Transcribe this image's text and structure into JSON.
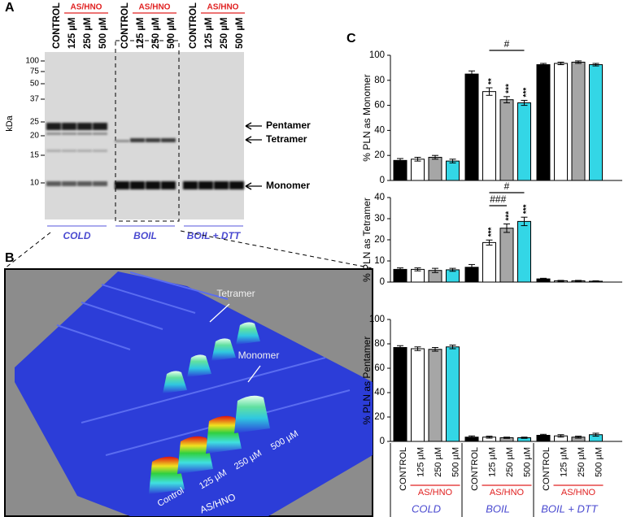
{
  "panel_labels": [
    "A",
    "B",
    "C"
  ],
  "blot": {
    "lanes": [
      "CONTROL",
      "125 µM",
      "250 µM",
      "500 µM",
      "CONTROL",
      "125 µM",
      "250 µM",
      "500 µM",
      "CONTROL",
      "125 µM",
      "250 µM",
      "500 µM"
    ],
    "treatment_labels": [
      "AS/HNO",
      "AS/HNO",
      "AS/HNO"
    ],
    "kda_label": "kDa",
    "markers": [
      100,
      75,
      50,
      37,
      25,
      20,
      15,
      10
    ],
    "bands": [
      "Pentamer",
      "Tetramer",
      "Monomer"
    ],
    "groups": [
      "COLD",
      "BOIL",
      "BOIL + DTT"
    ]
  },
  "surface": {
    "peak_labels": [
      "Tetramer",
      "Monomer"
    ],
    "lanes": [
      "Control",
      "125 µM",
      "250 µM",
      "500 µM"
    ],
    "treatment": "AS/HNO"
  },
  "chart_data": [
    {
      "type": "bar",
      "ylabel": "% PLN as Monomer",
      "ylim": [
        0,
        100
      ],
      "yticks": [
        0,
        20,
        40,
        60,
        80,
        100
      ],
      "colors": [
        "#000000",
        "#ffffff",
        "#a6a6a6",
        "#33d6e6",
        "#000000",
        "#ffffff",
        "#a6a6a6",
        "#33d6e6",
        "#000000",
        "#ffffff",
        "#a6a6a6",
        "#33d6e6"
      ],
      "values": [
        16,
        17,
        18.5,
        15.5,
        85,
        71,
        64.5,
        62,
        92.5,
        93.5,
        94.5,
        92.5
      ],
      "errors": [
        1.5,
        1.5,
        1.5,
        1.5,
        2.5,
        3,
        2.5,
        2,
        1,
        1,
        1,
        1
      ],
      "significance": [
        null,
        null,
        null,
        null,
        null,
        "**",
        "***",
        "***",
        null,
        null,
        null,
        null
      ],
      "brackets": [
        {
          "label": "#",
          "from": 5,
          "to": 7
        }
      ]
    },
    {
      "type": "bar",
      "ylabel": "% PLN as Tetramer",
      "ylim": [
        0,
        40
      ],
      "yticks": [
        0,
        10,
        20,
        30,
        40
      ],
      "colors": [
        "#000000",
        "#ffffff",
        "#a6a6a6",
        "#33d6e6",
        "#000000",
        "#ffffff",
        "#a6a6a6",
        "#33d6e6",
        "#000000",
        "#ffffff",
        "#a6a6a6",
        "#33d6e6"
      ],
      "values": [
        6,
        6,
        5.5,
        5.8,
        7,
        18.7,
        25.5,
        28.7,
        1.5,
        0.6,
        0.6,
        0.4
      ],
      "errors": [
        0.7,
        0.7,
        1,
        0.7,
        1.3,
        1.2,
        2,
        2,
        0.3,
        0.2,
        0.2,
        0.2
      ],
      "significance": [
        null,
        null,
        null,
        null,
        null,
        "***",
        "***",
        "***",
        null,
        null,
        null,
        null
      ],
      "brackets": [
        {
          "label": "#",
          "from": 5,
          "to": 7
        },
        {
          "label": "###",
          "from": 5,
          "to": 6
        }
      ]
    },
    {
      "type": "bar",
      "ylabel": "% PLN as Pentamer",
      "ylim": [
        0,
        100
      ],
      "yticks": [
        0,
        20,
        40,
        60,
        80,
        100
      ],
      "colors": [
        "#000000",
        "#ffffff",
        "#a6a6a6",
        "#33d6e6",
        "#000000",
        "#ffffff",
        "#a6a6a6",
        "#33d6e6",
        "#000000",
        "#ffffff",
        "#a6a6a6",
        "#33d6e6"
      ],
      "values": [
        77,
        76,
        75.5,
        77.5,
        3.5,
        3.5,
        3,
        3,
        5,
        4.5,
        3.5,
        5.5
      ],
      "errors": [
        1.5,
        1.5,
        1.5,
        1.5,
        1,
        0.8,
        0.5,
        0.5,
        0.8,
        1,
        0.8,
        1.2
      ],
      "categories": [
        "CONTROL",
        "125 µM",
        "250 µM",
        "500 µM",
        "CONTROL",
        "125 µM",
        "250 µM",
        "500 µM",
        "CONTROL",
        "125 µM",
        "250 µM",
        "500 µM"
      ],
      "group_sublabels": [
        "AS/HNO",
        "AS/HNO",
        "AS/HNO"
      ],
      "groups": [
        "COLD",
        "BOIL",
        "BOIL + DTT"
      ]
    }
  ]
}
